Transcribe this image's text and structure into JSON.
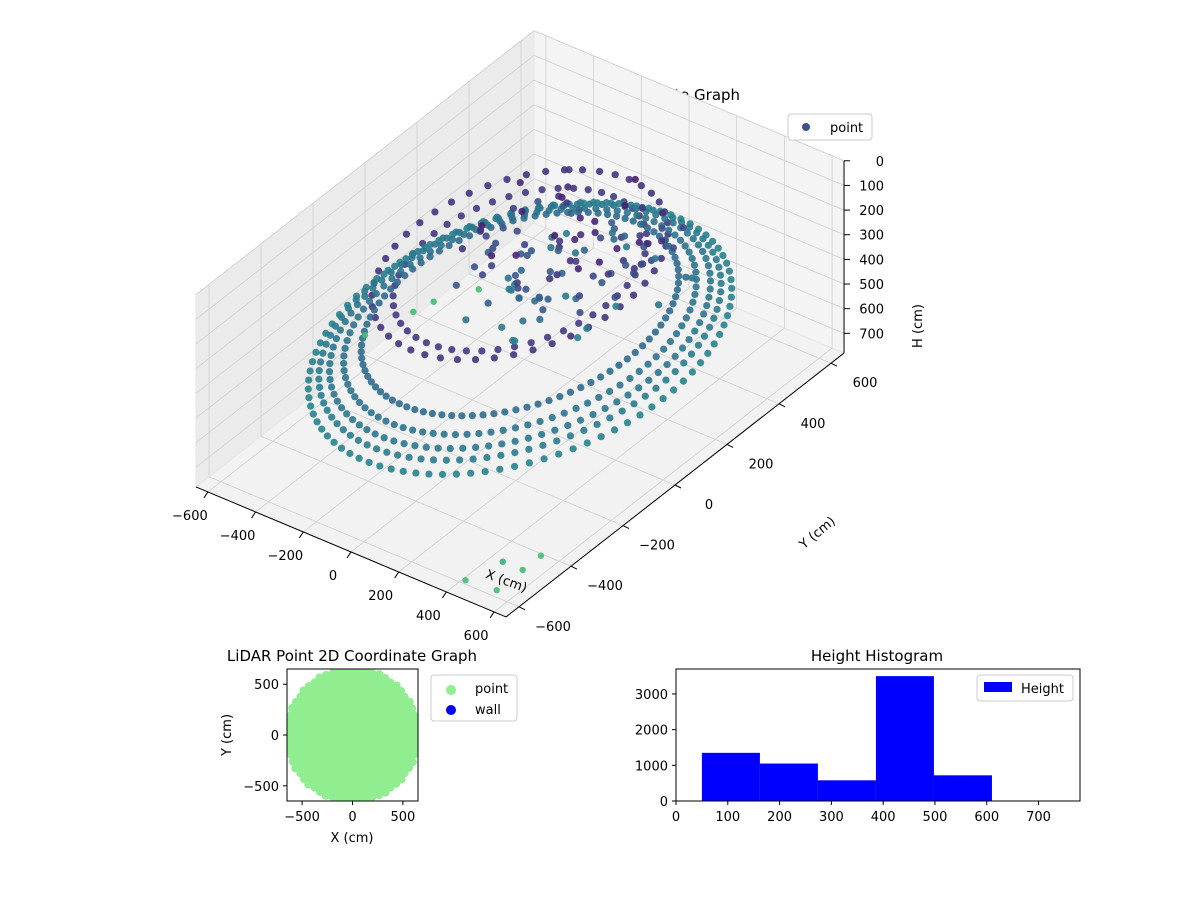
{
  "chart_data": [
    {
      "type": "scatter",
      "projection": "3d",
      "title": "LiDAR Point 3D Coordinate Graph",
      "xlabel": "X (cm)",
      "ylabel": "Y (cm)",
      "zlabel": "H (cm)",
      "xlim": [
        -650,
        650
      ],
      "ylim": [
        -650,
        650
      ],
      "zlim": [
        0,
        780
      ],
      "z_inverted": true,
      "xticks": [
        "−600",
        "−400",
        "−200",
        "0",
        "200",
        "400",
        "600"
      ],
      "yticks": [
        "−600",
        "−400",
        "−200",
        "0",
        "200",
        "400",
        "600"
      ],
      "zticks": [
        "0",
        "100",
        "200",
        "300",
        "400",
        "500",
        "600",
        "700"
      ],
      "colormap": "viridis",
      "grid": true,
      "legend_position": "upper right",
      "series": [
        {
          "name": "point",
          "legend_color": "#3b528b",
          "rings": [
            {
              "radius": 600,
              "height": 450
            },
            {
              "radius": 570,
              "height": 420
            },
            {
              "radius": 540,
              "height": 400
            },
            {
              "radius": 500,
              "height": 380
            },
            {
              "radius": 450,
              "height": 350
            }
          ],
          "inner_rings": [
            {
              "radius": 420,
              "height": 150
            },
            {
              "radius": 360,
              "height": 170
            }
          ],
          "cluster": {
            "x": [
              -260,
              320
            ],
            "y": [
              -60,
              420
            ],
            "h": [
              80,
              450
            ],
            "count": 120
          },
          "outliers": [
            {
              "x": -650,
              "y": 0,
              "h": 700
            },
            {
              "x": -600,
              "y": 140,
              "h": 700
            },
            {
              "x": -580,
              "y": 200,
              "h": 700
            },
            {
              "x": -500,
              "y": 300,
              "h": 700
            },
            {
              "x": 600,
              "y": -470,
              "h": 700
            },
            {
              "x": 600,
              "y": -540,
              "h": 700
            },
            {
              "x": 600,
              "y": -640,
              "h": 700
            },
            {
              "x": 480,
              "y": -650,
              "h": 700
            },
            {
              "x": 560,
              "y": -580,
              "h": 650
            }
          ]
        }
      ]
    },
    {
      "type": "scatter",
      "title": "LiDAR Point 2D Coordinate Graph",
      "xlabel": "X (cm)",
      "ylabel": "Y (cm)",
      "xlim": [
        -650,
        650
      ],
      "ylim": [
        -650,
        650
      ],
      "xticks": [
        "−500",
        "0",
        "500"
      ],
      "yticks": [
        "−500",
        "0",
        "500"
      ],
      "legend_position": "outside right",
      "series": [
        {
          "name": "point",
          "color": "#90ee90",
          "shape": "filled disk",
          "radius": 650
        },
        {
          "name": "wall",
          "color": "#0000ff",
          "points": []
        }
      ]
    },
    {
      "type": "histogram",
      "title": "Height Histogram",
      "xlim": [
        0,
        780
      ],
      "ylim": [
        0,
        3700
      ],
      "xticks": [
        "0",
        "100",
        "200",
        "300",
        "400",
        "500",
        "600",
        "700"
      ],
      "yticks": [
        "0",
        "1000",
        "2000",
        "3000"
      ],
      "legend_position": "upper right",
      "series": [
        {
          "name": "Height",
          "color": "#0000ff",
          "bins": [
            {
              "x0": 50,
              "x1": 162,
              "count": 1350
            },
            {
              "x0": 162,
              "x1": 274,
              "count": 1050
            },
            {
              "x0": 274,
              "x1": 386,
              "count": 580
            },
            {
              "x0": 386,
              "x1": 498,
              "count": 3500
            },
            {
              "x0": 498,
              "x1": 610,
              "count": 720
            }
          ]
        }
      ]
    }
  ]
}
